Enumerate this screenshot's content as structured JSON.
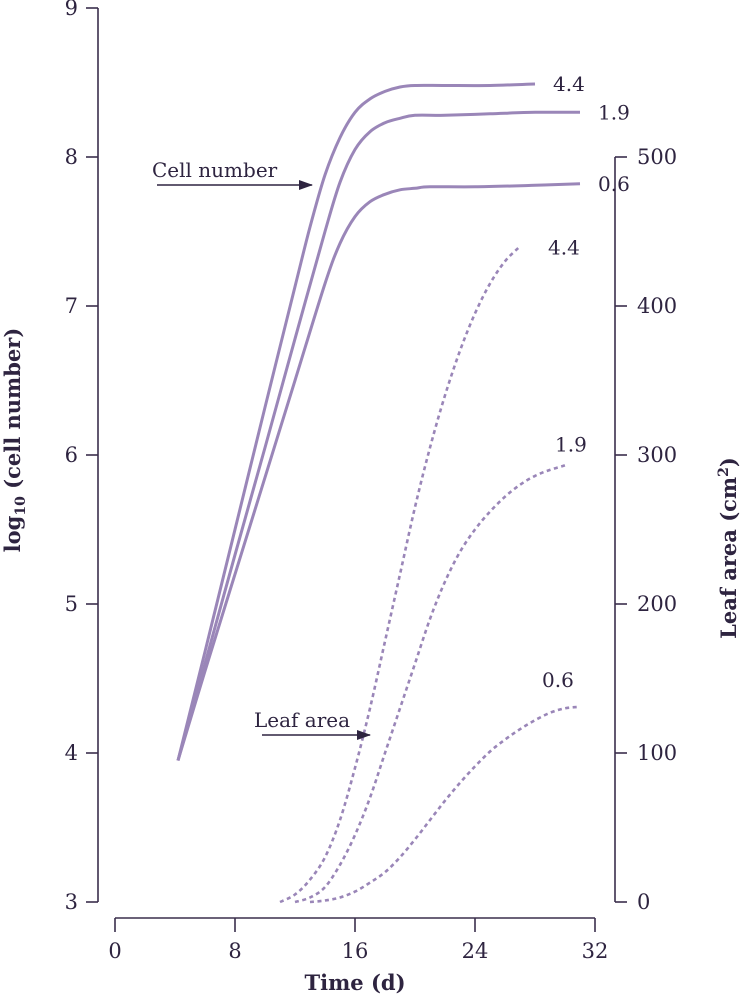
{
  "chart_data": {
    "type": "line",
    "xlabel": "Time (d)",
    "ylabel_left": {
      "main": "log",
      "sub": "10",
      "rest": " (cell number)"
    },
    "ylabel_right": {
      "main": "Leaf  area (cm",
      "sup": "2",
      "rest": ")"
    },
    "xlim": [
      0,
      32
    ],
    "ylim_left": [
      3,
      9
    ],
    "ylim_right": [
      0,
      500
    ],
    "x_ticks": [
      "0",
      "8",
      "16",
      "24",
      "32"
    ],
    "y_left_ticks": [
      "3",
      "4",
      "5",
      "6",
      "7",
      "8",
      "9"
    ],
    "y_right_ticks": [
      "0",
      "100",
      "200",
      "300",
      "400",
      "500"
    ],
    "annotations": {
      "cell_number": "Cell number",
      "leaf_area": "Leaf area"
    },
    "cell_series": [
      {
        "name": "4.4",
        "x": [
          4.2,
          6,
          8,
          10,
          12,
          13,
          14,
          15,
          16,
          17,
          18,
          19,
          20,
          22,
          25,
          28
        ],
        "y": [
          3.95,
          4.68,
          5.5,
          6.32,
          7.13,
          7.53,
          7.88,
          8.13,
          8.3,
          8.39,
          8.44,
          8.47,
          8.48,
          8.48,
          8.48,
          8.49
        ]
      },
      {
        "name": "1.9",
        "x": [
          4.2,
          6,
          8,
          10,
          12,
          14,
          15,
          16,
          17,
          18,
          19,
          20,
          22,
          25,
          28,
          31
        ],
        "y": [
          3.95,
          4.6,
          5.33,
          6.05,
          6.78,
          7.5,
          7.83,
          8.05,
          8.17,
          8.23,
          8.26,
          8.28,
          8.28,
          8.29,
          8.3,
          8.3
        ]
      },
      {
        "name": "0.6",
        "x": [
          4.2,
          6,
          8,
          10,
          12,
          14,
          15,
          16,
          17,
          18,
          19,
          20,
          21,
          24,
          28,
          31
        ],
        "y": [
          3.95,
          4.55,
          5.2,
          5.85,
          6.5,
          7.15,
          7.42,
          7.6,
          7.7,
          7.75,
          7.78,
          7.79,
          7.8,
          7.8,
          7.81,
          7.82
        ]
      }
    ],
    "leaf_series": [
      {
        "name": "4.4",
        "x": [
          11,
          12,
          13,
          14,
          15,
          16,
          17,
          18,
          19,
          20,
          21,
          22,
          23,
          24,
          25,
          26,
          27
        ],
        "y": [
          0,
          5,
          15,
          30,
          55,
          90,
          130,
          175,
          220,
          265,
          305,
          340,
          370,
          395,
          415,
          430,
          440
        ]
      },
      {
        "name": "1.9",
        "x": [
          12,
          13,
          14,
          15,
          16,
          17,
          18,
          19,
          20,
          21,
          22,
          23,
          24,
          25,
          26,
          27,
          28,
          29,
          30
        ],
        "y": [
          0,
          3,
          10,
          25,
          45,
          70,
          100,
          130,
          160,
          190,
          215,
          235,
          250,
          262,
          272,
          280,
          286,
          290,
          293
        ]
      },
      {
        "name": "0.6",
        "x": [
          13,
          14,
          15,
          16,
          17,
          18,
          19,
          20,
          21,
          22,
          23,
          24,
          25,
          26,
          27,
          28,
          29,
          30,
          31
        ],
        "y": [
          0,
          1,
          3,
          7,
          13,
          20,
          30,
          42,
          55,
          68,
          80,
          91,
          101,
          109,
          116,
          122,
          127,
          130,
          131
        ]
      }
    ]
  }
}
